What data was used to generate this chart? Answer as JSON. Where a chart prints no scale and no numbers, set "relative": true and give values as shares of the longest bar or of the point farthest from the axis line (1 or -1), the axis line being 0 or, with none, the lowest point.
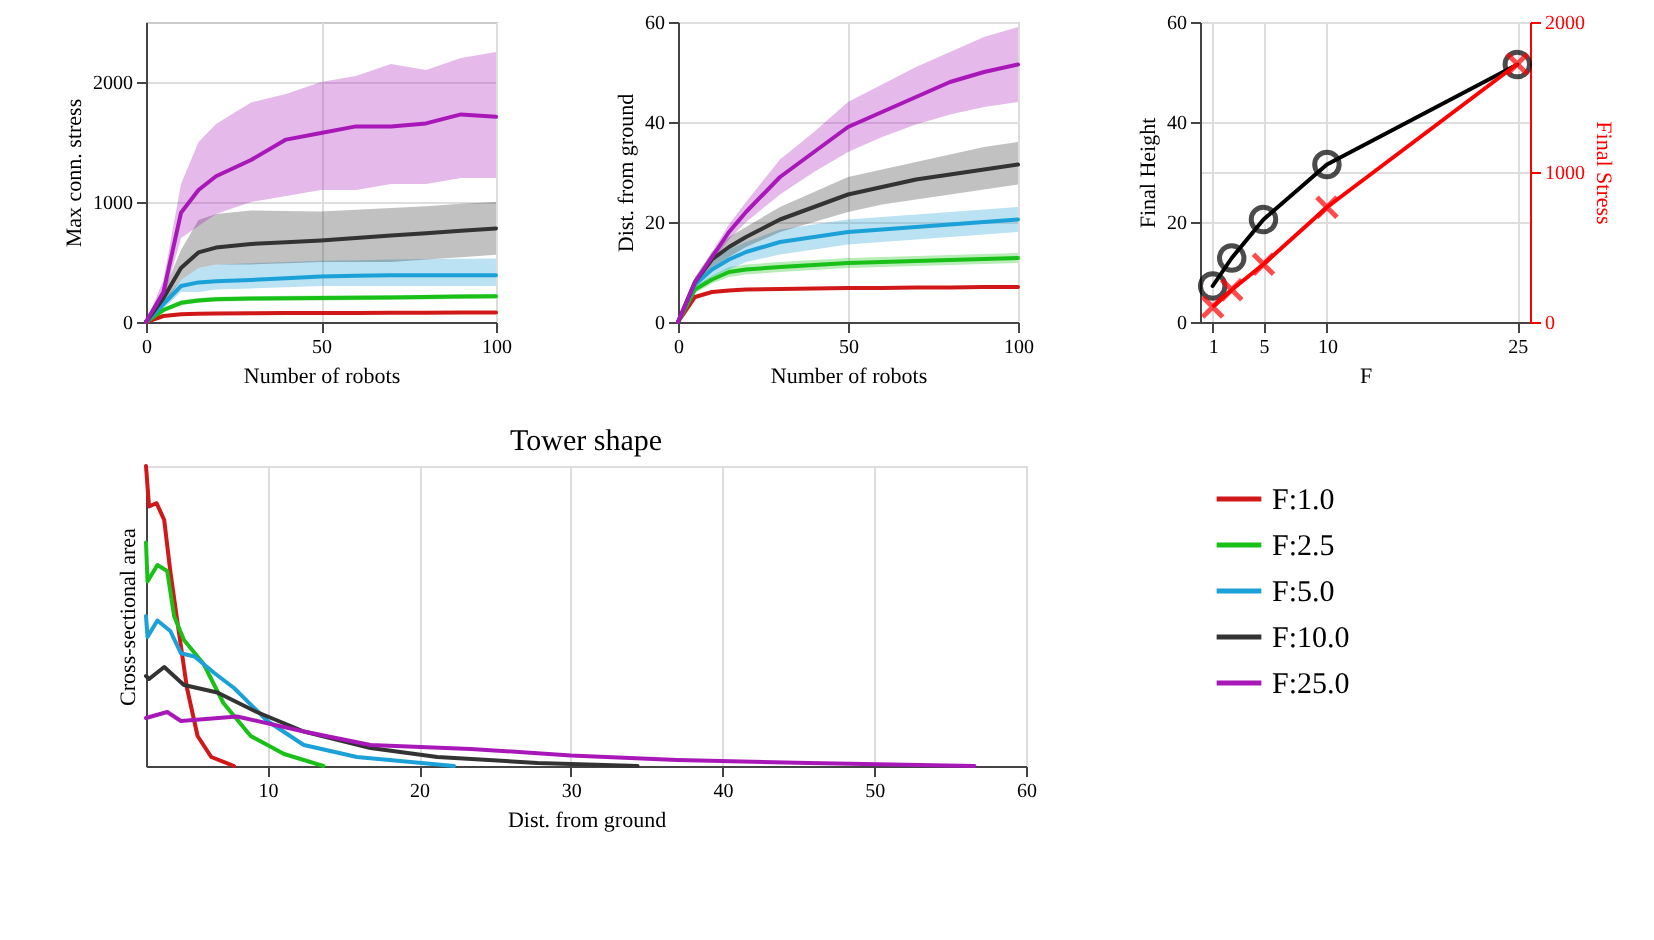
{
  "chart_data": [
    {
      "type": "line",
      "xlabel": "Number of robots",
      "ylabel": "Max conn. stress",
      "x": [
        0,
        5,
        10,
        15,
        20,
        30,
        40,
        50,
        60,
        70,
        80,
        90,
        100
      ],
      "xlim": [
        0,
        100
      ],
      "xticks": [
        0,
        50,
        100
      ],
      "ylim": [
        0,
        2500
      ],
      "yticks": [
        0,
        1000,
        2000
      ],
      "grid": true,
      "series": [
        {
          "color": "#d01818",
          "values": [
            0,
            50,
            65,
            68,
            70,
            72,
            74,
            75,
            76,
            77,
            78,
            79,
            80
          ]
        },
        {
          "color": "#18c018",
          "values": [
            0,
            100,
            160,
            180,
            190,
            195,
            198,
            200,
            202,
            205,
            208,
            212,
            215
          ],
          "lower": [
            0,
            80,
            140,
            160,
            170,
            175,
            178,
            180,
            182,
            185,
            188,
            192,
            195
          ],
          "upper": [
            0,
            120,
            180,
            200,
            210,
            215,
            218,
            220,
            222,
            225,
            228,
            232,
            235
          ]
        },
        {
          "color": "#1ba0d8",
          "values": [
            0,
            150,
            300,
            330,
            340,
            350,
            365,
            380,
            385,
            390,
            390,
            390,
            390
          ],
          "lower": [
            0,
            110,
            250,
            250,
            270,
            280,
            290,
            300,
            300,
            300,
            300,
            300,
            300
          ],
          "upper": [
            0,
            190,
            350,
            450,
            480,
            490,
            500,
            510,
            515,
            520,
            525,
            528,
            530
          ]
        },
        {
          "color": "#333333",
          "values": [
            0,
            200,
            450,
            580,
            620,
            650,
            665,
            680,
            700,
            720,
            740,
            760,
            780
          ],
          "lower": [
            0,
            150,
            350,
            450,
            480,
            480,
            490,
            500,
            500,
            500,
            520,
            540,
            560
          ],
          "upper": [
            0,
            250,
            600,
            850,
            900,
            930,
            925,
            920,
            935,
            950,
            965,
            985,
            1000
          ]
        },
        {
          "color": "#a818b8",
          "values": [
            0,
            250,
            910,
            1100,
            1215,
            1350,
            1520,
            1575,
            1630,
            1630,
            1655,
            1730,
            1710
          ],
          "lower": [
            0,
            180,
            700,
            800,
            900,
            1000,
            1050,
            1100,
            1100,
            1150,
            1150,
            1200,
            1200
          ],
          "upper": [
            0,
            350,
            1150,
            1500,
            1650,
            1830,
            1900,
            2000,
            2050,
            2150,
            2100,
            2200,
            2250
          ]
        }
      ]
    },
    {
      "type": "line",
      "xlabel": "Number of robots",
      "ylabel": "Dist. from ground",
      "x": [
        0,
        5,
        10,
        15,
        20,
        30,
        40,
        50,
        60,
        70,
        80,
        90,
        100
      ],
      "xlim": [
        0,
        100
      ],
      "xticks": [
        0,
        50,
        100
      ],
      "ylim": [
        0,
        60
      ],
      "yticks": [
        0,
        20,
        40,
        60
      ],
      "grid": true,
      "series": [
        {
          "color": "#d01818",
          "values": [
            0,
            5,
            6,
            6.3,
            6.5,
            6.6,
            6.7,
            6.8,
            6.8,
            6.9,
            6.9,
            7,
            7
          ]
        },
        {
          "color": "#18c018",
          "values": [
            0,
            6.5,
            8.5,
            10,
            10.5,
            11,
            11.4,
            11.8,
            12,
            12.2,
            12.4,
            12.6,
            12.8
          ],
          "lower": [
            0,
            5.8,
            7.7,
            9,
            9.5,
            10,
            10.4,
            10.8,
            11,
            11.2,
            11.4,
            11.6,
            11.8
          ],
          "upper": [
            0,
            7.2,
            9.3,
            11,
            11.5,
            12,
            12.4,
            12.8,
            13,
            13.2,
            13.4,
            13.6,
            13.8
          ]
        },
        {
          "color": "#1ba0d8",
          "values": [
            0,
            7.5,
            10.5,
            12.5,
            14,
            16,
            17,
            18,
            18.5,
            19,
            19.5,
            20,
            20.5
          ],
          "lower": [
            0,
            6.5,
            9,
            10.5,
            12,
            13.5,
            14.5,
            15.5,
            16,
            16.5,
            17,
            17.5,
            18
          ],
          "upper": [
            0,
            8.5,
            12,
            14.5,
            16,
            18.5,
            19.5,
            20.5,
            21,
            21.5,
            22,
            22.5,
            23
          ]
        },
        {
          "color": "#333333",
          "values": [
            0,
            8,
            12.5,
            15,
            17,
            20.5,
            23,
            25.5,
            27,
            28.5,
            29.5,
            30.5,
            31.5
          ],
          "lower": [
            0,
            7,
            11,
            13,
            15,
            18,
            20,
            22,
            23.5,
            24.5,
            25.5,
            26.5,
            27.5
          ],
          "upper": [
            0,
            9,
            14,
            17,
            19,
            23,
            26,
            29,
            30.5,
            32,
            33.5,
            35,
            36
          ]
        },
        {
          "color": "#a818b8",
          "values": [
            0,
            8,
            13,
            18,
            22,
            29,
            34,
            39,
            42,
            45,
            48,
            50,
            51.5
          ],
          "lower": [
            0,
            7.5,
            12,
            16.5,
            20,
            25.5,
            30,
            34,
            37,
            39.5,
            41.5,
            43,
            44
          ],
          "upper": [
            0,
            8.5,
            14,
            19.5,
            24,
            32.5,
            38,
            44,
            47.5,
            51,
            54,
            57,
            59
          ]
        }
      ]
    },
    {
      "type": "line",
      "xlabel": "F",
      "ylabel": "Final Height",
      "y2label": "Final Stress",
      "x": [
        1,
        2.5,
        5,
        10,
        25
      ],
      "xlim": [
        0,
        26
      ],
      "xticks": [
        1,
        5,
        10,
        25
      ],
      "ylim": [
        0,
        60
      ],
      "yticks": [
        0,
        20,
        40,
        60
      ],
      "y2lim": [
        0,
        2000
      ],
      "y2ticks": [
        0,
        1000,
        2000
      ],
      "grid": true,
      "series": [
        {
          "color": "#000000",
          "marker": "circle",
          "values": [
            7.2,
            12.8,
            20.5,
            31.5,
            51.5
          ]
        },
        {
          "color": "#ff0000",
          "marker": "cross",
          "axis": "y2",
          "values": [
            100,
            215,
            385,
            765,
            1720
          ]
        }
      ]
    },
    {
      "type": "line",
      "title": "Tower shape",
      "xlabel": "Dist. from ground",
      "ylabel": "Cross-sectional area",
      "relative": true,
      "xlim": [
        2,
        60
      ],
      "xticks": [
        10,
        20,
        30,
        40,
        50,
        60
      ],
      "grid": "x",
      "legend": "right",
      "series": [
        {
          "name": "F:1.0",
          "color": "#d01818",
          "x": [
            2,
            2.2,
            2.7,
            3.2,
            3.6,
            4.1,
            4.7,
            5.4,
            6.3,
            7.8
          ],
          "values": [
            1.0,
            0.865,
            0.876,
            0.82,
            0.65,
            0.47,
            0.26,
            0.1,
            0.03,
            0
          ]
        },
        {
          "name": "F:2.5",
          "color": "#18c018",
          "x": [
            2,
            2.1,
            2.75,
            3.4,
            3.85,
            4.5,
            5.8,
            7.1,
            8.9,
            11.1,
            13.7
          ],
          "values": [
            0.745,
            0.615,
            0.67,
            0.65,
            0.5,
            0.42,
            0.34,
            0.21,
            0.1,
            0.04,
            0
          ]
        },
        {
          "name": "F:5.0",
          "color": "#1ba0d8",
          "x": [
            2,
            2.1,
            2.75,
            3.6,
            4.3,
            5.2,
            6.5,
            7.8,
            10,
            12.4,
            15.9,
            22.3
          ],
          "values": [
            0.5,
            0.43,
            0.485,
            0.45,
            0.376,
            0.365,
            0.31,
            0.26,
            0.15,
            0.07,
            0.03,
            0
          ]
        },
        {
          "name": "F:10.0",
          "color": "#333333",
          "x": [
            2,
            2.2,
            3.2,
            4.5,
            6.7,
            9.3,
            12.4,
            16.8,
            21.2,
            27.8,
            34.4
          ],
          "values": [
            0.3,
            0.29,
            0.33,
            0.27,
            0.245,
            0.18,
            0.115,
            0.06,
            0.03,
            0.01,
            0
          ]
        },
        {
          "name": "F:25.0",
          "color": "#a818b8",
          "x": [
            2,
            3.4,
            4.3,
            8,
            12.4,
            16.8,
            23.4,
            30,
            37,
            45.7,
            56.6
          ],
          "values": [
            0.16,
            0.18,
            0.15,
            0.165,
            0.115,
            0.07,
            0.057,
            0.035,
            0.02,
            0.01,
            0
          ]
        }
      ]
    }
  ]
}
